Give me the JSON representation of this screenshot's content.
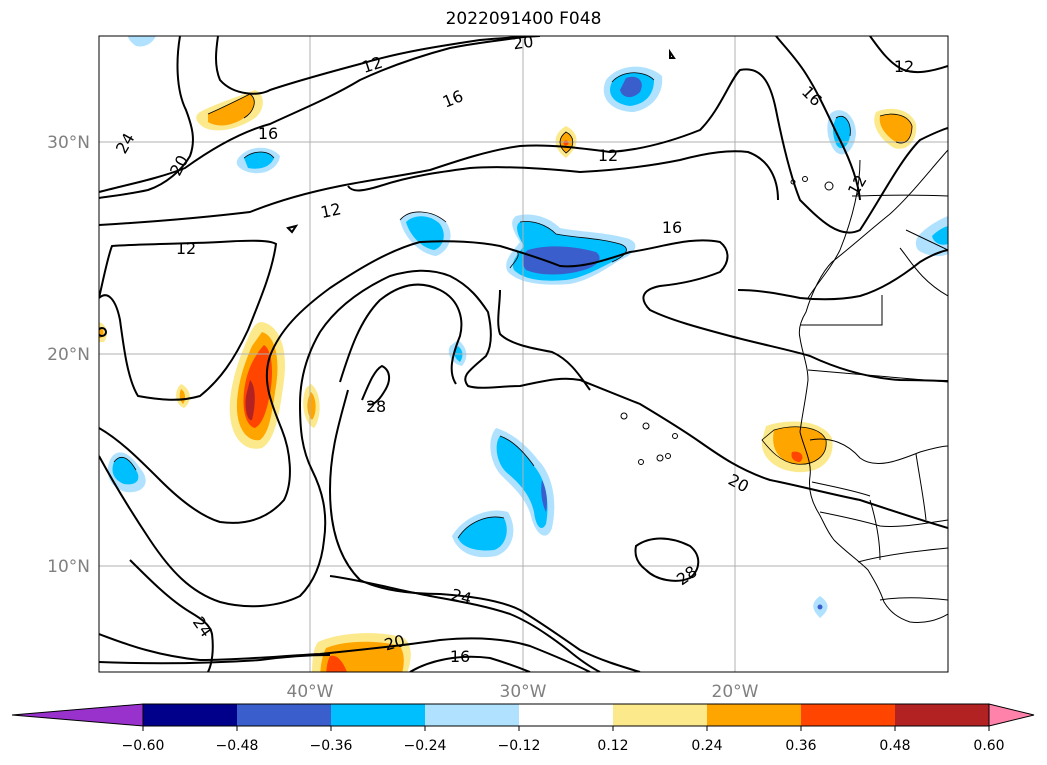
{
  "title": "2022091400 F048",
  "map": {
    "lat_labels": [
      "30°N",
      "20°N",
      "10°N"
    ],
    "lon_labels": [
      "40°W",
      "30°W",
      "20°W"
    ],
    "contour_labels": [
      "12",
      "20",
      "16",
      "24",
      "20",
      "12",
      "16",
      "12",
      "16",
      "12",
      "16",
      "12",
      "28",
      "20",
      "28",
      "24",
      "24",
      "20",
      "16"
    ]
  },
  "colorbar": {
    "ticks": [
      "−0.60",
      "−0.48",
      "−0.36",
      "−0.24",
      "−0.12",
      "0.12",
      "0.24",
      "0.36",
      "0.48",
      "0.60"
    ],
    "colors": [
      "#9932cc",
      "#00008b",
      "#3a5fcd",
      "#00bfff",
      "#b0e2ff",
      "#ffffff",
      "#fce98b",
      "#ffa500",
      "#ff4500",
      "#b22222",
      "#ff82ab"
    ]
  }
}
